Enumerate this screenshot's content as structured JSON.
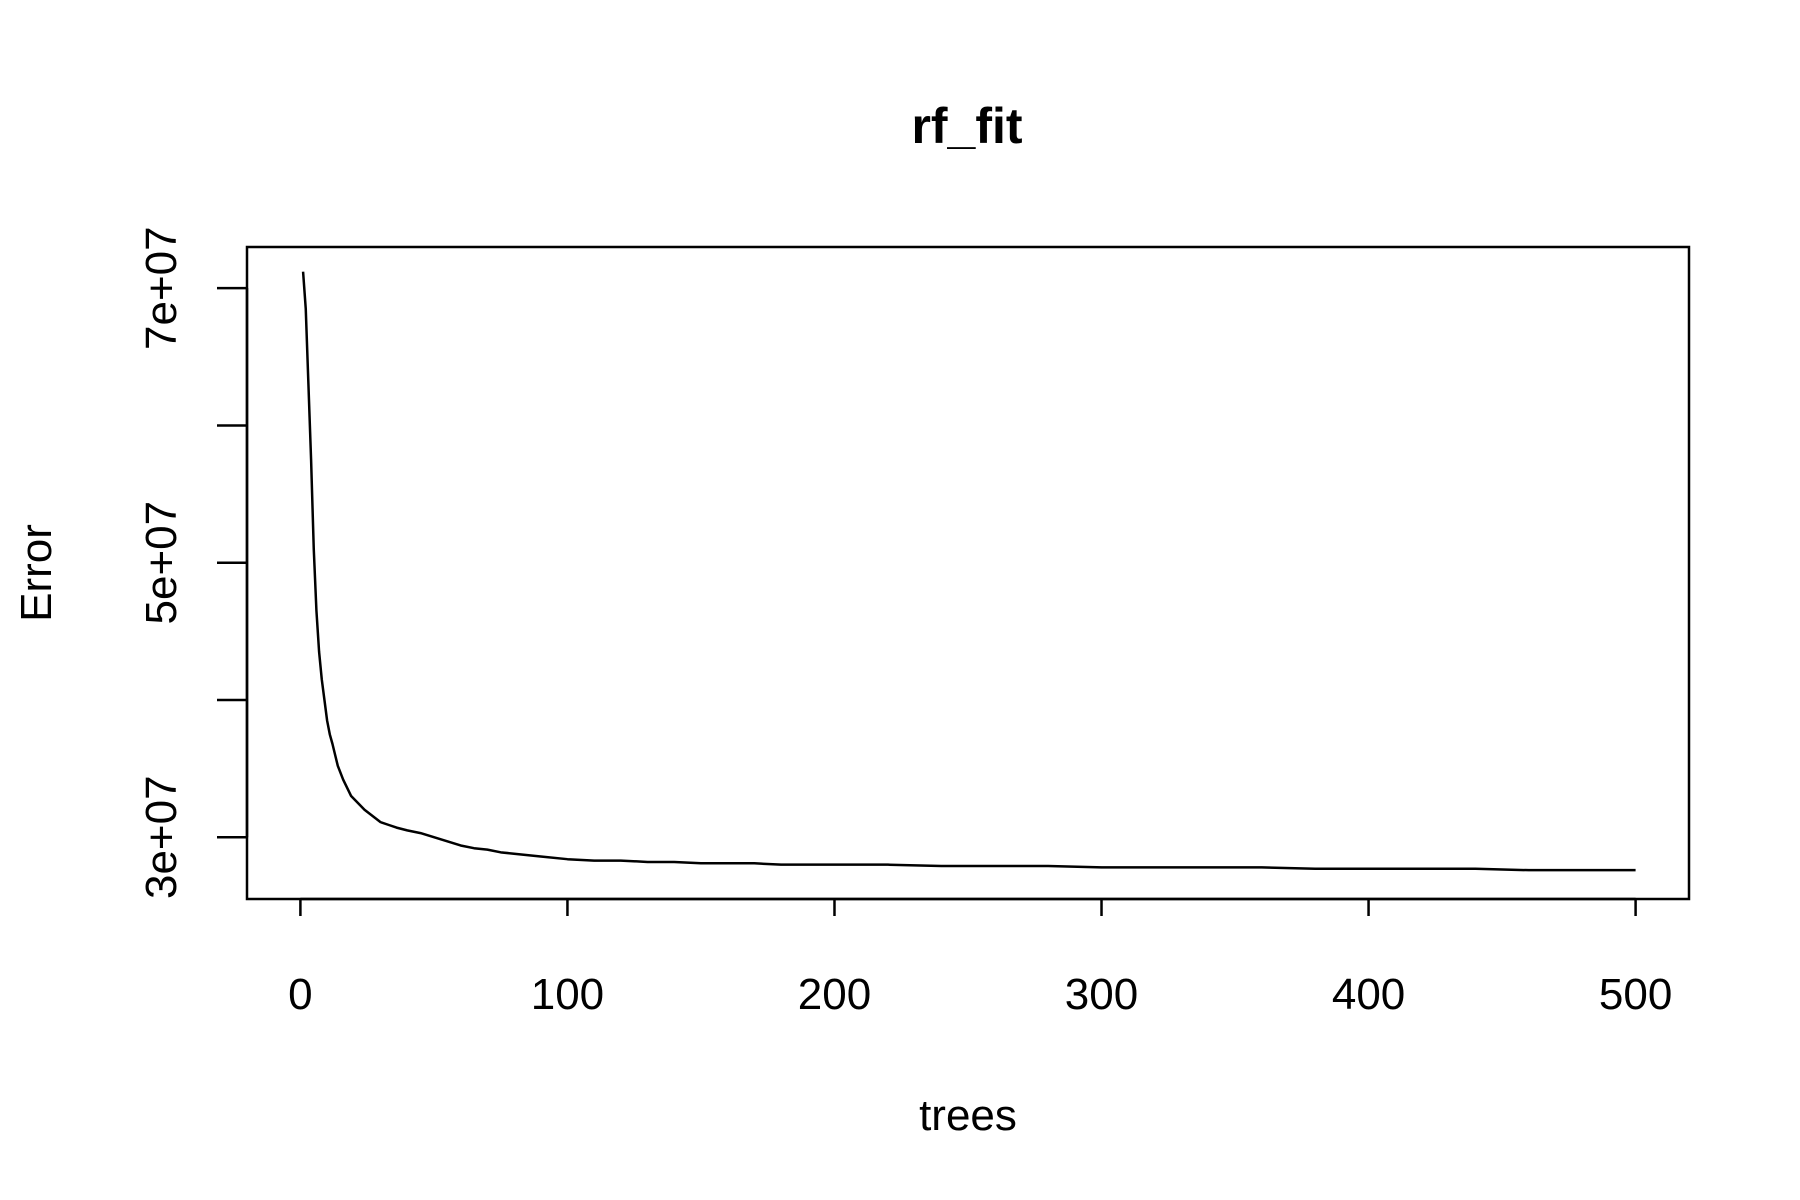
{
  "chart_data": {
    "type": "line",
    "title": "rf_fit",
    "xlabel": "trees",
    "ylabel": "Error",
    "xlim": [
      -20,
      520
    ],
    "ylim": [
      25500000,
      73000000
    ],
    "x_ticks": [
      0,
      100,
      200,
      300,
      400,
      500
    ],
    "x_tick_labels": [
      "0",
      "100",
      "200",
      "300",
      "400",
      "500"
    ],
    "y_ticks": [
      30000000,
      40000000,
      50000000,
      60000000,
      70000000
    ],
    "y_tick_labels": [
      "3e+07",
      "",
      "5e+07",
      "",
      "7e+07"
    ],
    "grid": false,
    "legend": "none",
    "series": [
      {
        "x": [
          1,
          2,
          3,
          4,
          5,
          6,
          7,
          8,
          9,
          10,
          11,
          12,
          13,
          14,
          15,
          16,
          17,
          18,
          19,
          20,
          22,
          24,
          26,
          28,
          30,
          33,
          36,
          40,
          45,
          50,
          55,
          60,
          65,
          70,
          75,
          80,
          90,
          100,
          110,
          120,
          130,
          140,
          150,
          160,
          170,
          180,
          190,
          200,
          220,
          240,
          260,
          280,
          300,
          320,
          340,
          360,
          380,
          400,
          420,
          440,
          460,
          480,
          500
        ],
        "y": [
          71200000,
          68500000,
          63000000,
          57500000,
          51000000,
          46500000,
          43500000,
          41500000,
          40000000,
          38500000,
          37500000,
          36800000,
          36000000,
          35200000,
          34700000,
          34200000,
          33800000,
          33400000,
          33000000,
          32800000,
          32400000,
          32000000,
          31700000,
          31400000,
          31100000,
          30900000,
          30700000,
          30500000,
          30300000,
          30000000,
          29700000,
          29400000,
          29200000,
          29100000,
          28900000,
          28800000,
          28600000,
          28400000,
          28300000,
          28300000,
          28200000,
          28200000,
          28100000,
          28100000,
          28100000,
          28000000,
          28000000,
          28000000,
          28000000,
          27900000,
          27900000,
          27900000,
          27800000,
          27800000,
          27800000,
          27800000,
          27700000,
          27700000,
          27700000,
          27700000,
          27600000,
          27600000,
          27600000
        ]
      }
    ]
  }
}
